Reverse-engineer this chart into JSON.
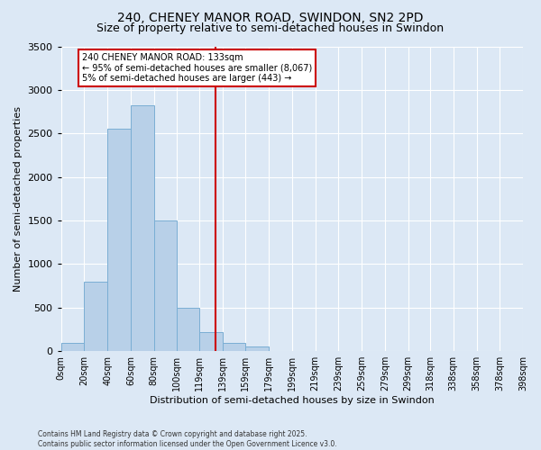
{
  "title_line1": "240, CHENEY MANOR ROAD, SWINDON, SN2 2PD",
  "title_line2": "Size of property relative to semi-detached houses in Swindon",
  "xlabel": "Distribution of semi-detached houses by size in Swindon",
  "ylabel": "Number of semi-detached properties",
  "property_size": 133,
  "annotation_title": "240 CHENEY MANOR ROAD: 133sqm",
  "annotation_line2": "← 95% of semi-detached houses are smaller (8,067)",
  "annotation_line3": "5% of semi-detached houses are larger (443) →",
  "footer_line1": "Contains HM Land Registry data © Crown copyright and database right 2025.",
  "footer_line2": "Contains public sector information licensed under the Open Government Licence v3.0.",
  "bar_color": "#b8d0e8",
  "bar_edge_color": "#7aaed4",
  "vline_color": "#cc0000",
  "background_color": "#dce8f5",
  "annotation_box_color": "#ffffff",
  "annotation_box_edge": "#cc0000",
  "bins": [
    0,
    20,
    40,
    60,
    80,
    100,
    119,
    139,
    159,
    179,
    199,
    219,
    239,
    259,
    279,
    299,
    318,
    338,
    358,
    378,
    398
  ],
  "bin_labels": [
    "0sqm",
    "20sqm",
    "40sqm",
    "60sqm",
    "80sqm",
    "100sqm",
    "119sqm",
    "139sqm",
    "159sqm",
    "179sqm",
    "199sqm",
    "219sqm",
    "239sqm",
    "259sqm",
    "279sqm",
    "299sqm",
    "318sqm",
    "338sqm",
    "358sqm",
    "378sqm",
    "398sqm"
  ],
  "counts": [
    100,
    800,
    2550,
    2820,
    1500,
    500,
    220,
    90,
    50,
    0,
    0,
    0,
    0,
    0,
    0,
    0,
    0,
    0,
    0,
    0
  ],
  "ylim": [
    0,
    3500
  ],
  "yticks": [
    0,
    500,
    1000,
    1500,
    2000,
    2500,
    3000,
    3500
  ],
  "grid_color": "#ffffff",
  "title_fontsize": 10,
  "subtitle_fontsize": 9
}
